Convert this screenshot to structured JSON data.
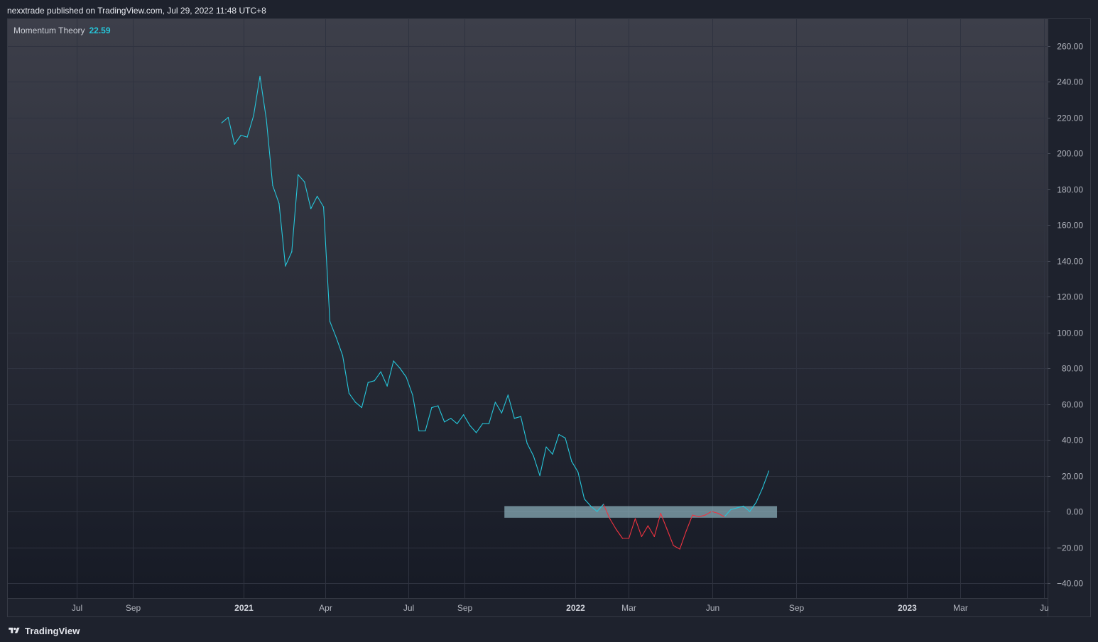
{
  "header": {
    "published": "nexxtrade published on TradingView.com, Jul 29, 2022 11:48 UTC+8"
  },
  "legend": {
    "indicator_name": "Momentum Theory",
    "indicator_value": "22.59",
    "value_color": "#26c6da"
  },
  "footer": {
    "brand": "TradingView",
    "logo_icon": "tradingview-logo-icon"
  },
  "colors": {
    "background_top": "#3d3f4a",
    "background_bottom": "#161a25",
    "positive_line": "#26c6da",
    "negative_line": "#ef3340",
    "zero_band": "#8fb3bf",
    "grid": "#2f3340"
  },
  "chart_data": {
    "type": "line",
    "title": "Momentum Theory",
    "xlabel": "",
    "ylabel": "",
    "ylim": [
      -40,
      260
    ],
    "y_ticks": [
      "260.00",
      "240.00",
      "220.00",
      "200.00",
      "180.00",
      "160.00",
      "140.00",
      "120.00",
      "100.00",
      "80.00",
      "60.00",
      "40.00",
      "20.00",
      "0.00",
      "−20.00",
      "−40.00"
    ],
    "x_ticks": [
      {
        "label": "Jul",
        "date": "2020-07-01",
        "bold": false
      },
      {
        "label": "Sep",
        "date": "2020-09-01",
        "bold": false
      },
      {
        "label": "2021",
        "date": "2021-01-01",
        "bold": true
      },
      {
        "label": "Apr",
        "date": "2021-04-01",
        "bold": false
      },
      {
        "label": "Jul",
        "date": "2021-07-01",
        "bold": false
      },
      {
        "label": "Sep",
        "date": "2021-09-01",
        "bold": false
      },
      {
        "label": "2022",
        "date": "2022-01-01",
        "bold": true
      },
      {
        "label": "Mar",
        "date": "2022-03-01",
        "bold": false
      },
      {
        "label": "Jun",
        "date": "2022-06-01",
        "bold": false
      },
      {
        "label": "Sep",
        "date": "2022-09-01",
        "bold": false
      },
      {
        "label": "2023",
        "date": "2023-01-01",
        "bold": true
      },
      {
        "label": "Mar",
        "date": "2023-03-01",
        "bold": false
      },
      {
        "label": "Ju",
        "date": "2023-06-01",
        "bold": false
      }
    ],
    "zero_band": {
      "from_date": "2021-10-15",
      "to_date": "2022-08-11",
      "y_low": -3.5,
      "y_high": 3.0
    },
    "series": [
      {
        "points": [
          [
            "2020-12-08",
            217
          ],
          [
            "2020-12-15",
            220
          ],
          [
            "2020-12-22",
            205
          ],
          [
            "2020-12-29",
            210
          ],
          [
            "2021-01-05",
            209
          ],
          [
            "2021-01-12",
            221
          ],
          [
            "2021-01-19",
            243
          ],
          [
            "2021-01-26",
            219
          ],
          [
            "2021-02-02",
            182
          ],
          [
            "2021-02-09",
            172
          ],
          [
            "2021-02-16",
            137
          ],
          [
            "2021-02-23",
            145
          ],
          [
            "2021-03-02",
            188
          ],
          [
            "2021-03-09",
            184
          ],
          [
            "2021-03-16",
            169
          ],
          [
            "2021-03-23",
            176
          ],
          [
            "2021-03-30",
            170
          ],
          [
            "2021-04-06",
            106
          ],
          [
            "2021-04-13",
            97
          ],
          [
            "2021-04-20",
            87
          ],
          [
            "2021-04-27",
            66
          ],
          [
            "2021-05-04",
            61
          ],
          [
            "2021-05-11",
            58
          ],
          [
            "2021-05-18",
            72
          ],
          [
            "2021-05-25",
            73
          ],
          [
            "2021-06-01",
            78
          ],
          [
            "2021-06-08",
            70
          ],
          [
            "2021-06-15",
            84
          ],
          [
            "2021-06-22",
            80
          ],
          [
            "2021-06-29",
            75
          ],
          [
            "2021-07-06",
            65
          ],
          [
            "2021-07-13",
            45
          ],
          [
            "2021-07-20",
            45
          ],
          [
            "2021-07-27",
            58
          ],
          [
            "2021-08-03",
            59
          ],
          [
            "2021-08-10",
            50
          ],
          [
            "2021-08-17",
            52
          ],
          [
            "2021-08-24",
            49
          ],
          [
            "2021-08-31",
            54
          ],
          [
            "2021-09-07",
            48
          ],
          [
            "2021-09-14",
            44
          ],
          [
            "2021-09-21",
            49
          ],
          [
            "2021-09-28",
            49
          ],
          [
            "2021-10-05",
            61
          ],
          [
            "2021-10-12",
            55
          ],
          [
            "2021-10-19",
            65
          ],
          [
            "2021-10-26",
            52
          ],
          [
            "2021-11-02",
            53
          ],
          [
            "2021-11-09",
            38
          ],
          [
            "2021-11-16",
            31
          ],
          [
            "2021-11-23",
            20
          ],
          [
            "2021-11-30",
            36
          ],
          [
            "2021-12-07",
            32
          ],
          [
            "2021-12-14",
            43
          ],
          [
            "2021-12-21",
            41
          ],
          [
            "2021-12-28",
            28
          ],
          [
            "2022-01-04",
            22
          ],
          [
            "2022-01-11",
            7
          ],
          [
            "2022-01-18",
            3
          ],
          [
            "2022-01-25",
            0
          ],
          [
            "2022-02-01",
            4
          ],
          [
            "2022-02-08",
            -4
          ],
          [
            "2022-02-15",
            -10
          ],
          [
            "2022-02-22",
            -15
          ],
          [
            "2022-03-01",
            -15
          ],
          [
            "2022-03-08",
            -4
          ],
          [
            "2022-03-15",
            -14
          ],
          [
            "2022-03-22",
            -8
          ],
          [
            "2022-03-29",
            -14
          ],
          [
            "2022-04-05",
            -1
          ],
          [
            "2022-04-12",
            -10
          ],
          [
            "2022-04-19",
            -19
          ],
          [
            "2022-04-26",
            -21
          ],
          [
            "2022-05-03",
            -11
          ],
          [
            "2022-05-10",
            -2
          ],
          [
            "2022-05-17",
            -3
          ],
          [
            "2022-05-24",
            -2
          ],
          [
            "2022-05-31",
            0
          ],
          [
            "2022-06-07",
            -1
          ],
          [
            "2022-06-14",
            -3
          ],
          [
            "2022-06-21",
            1
          ],
          [
            "2022-06-28",
            2
          ],
          [
            "2022-07-05",
            3
          ],
          [
            "2022-07-12",
            0
          ],
          [
            "2022-07-19",
            5
          ],
          [
            "2022-07-26",
            13
          ],
          [
            "2022-08-02",
            22.59
          ]
        ]
      }
    ]
  }
}
